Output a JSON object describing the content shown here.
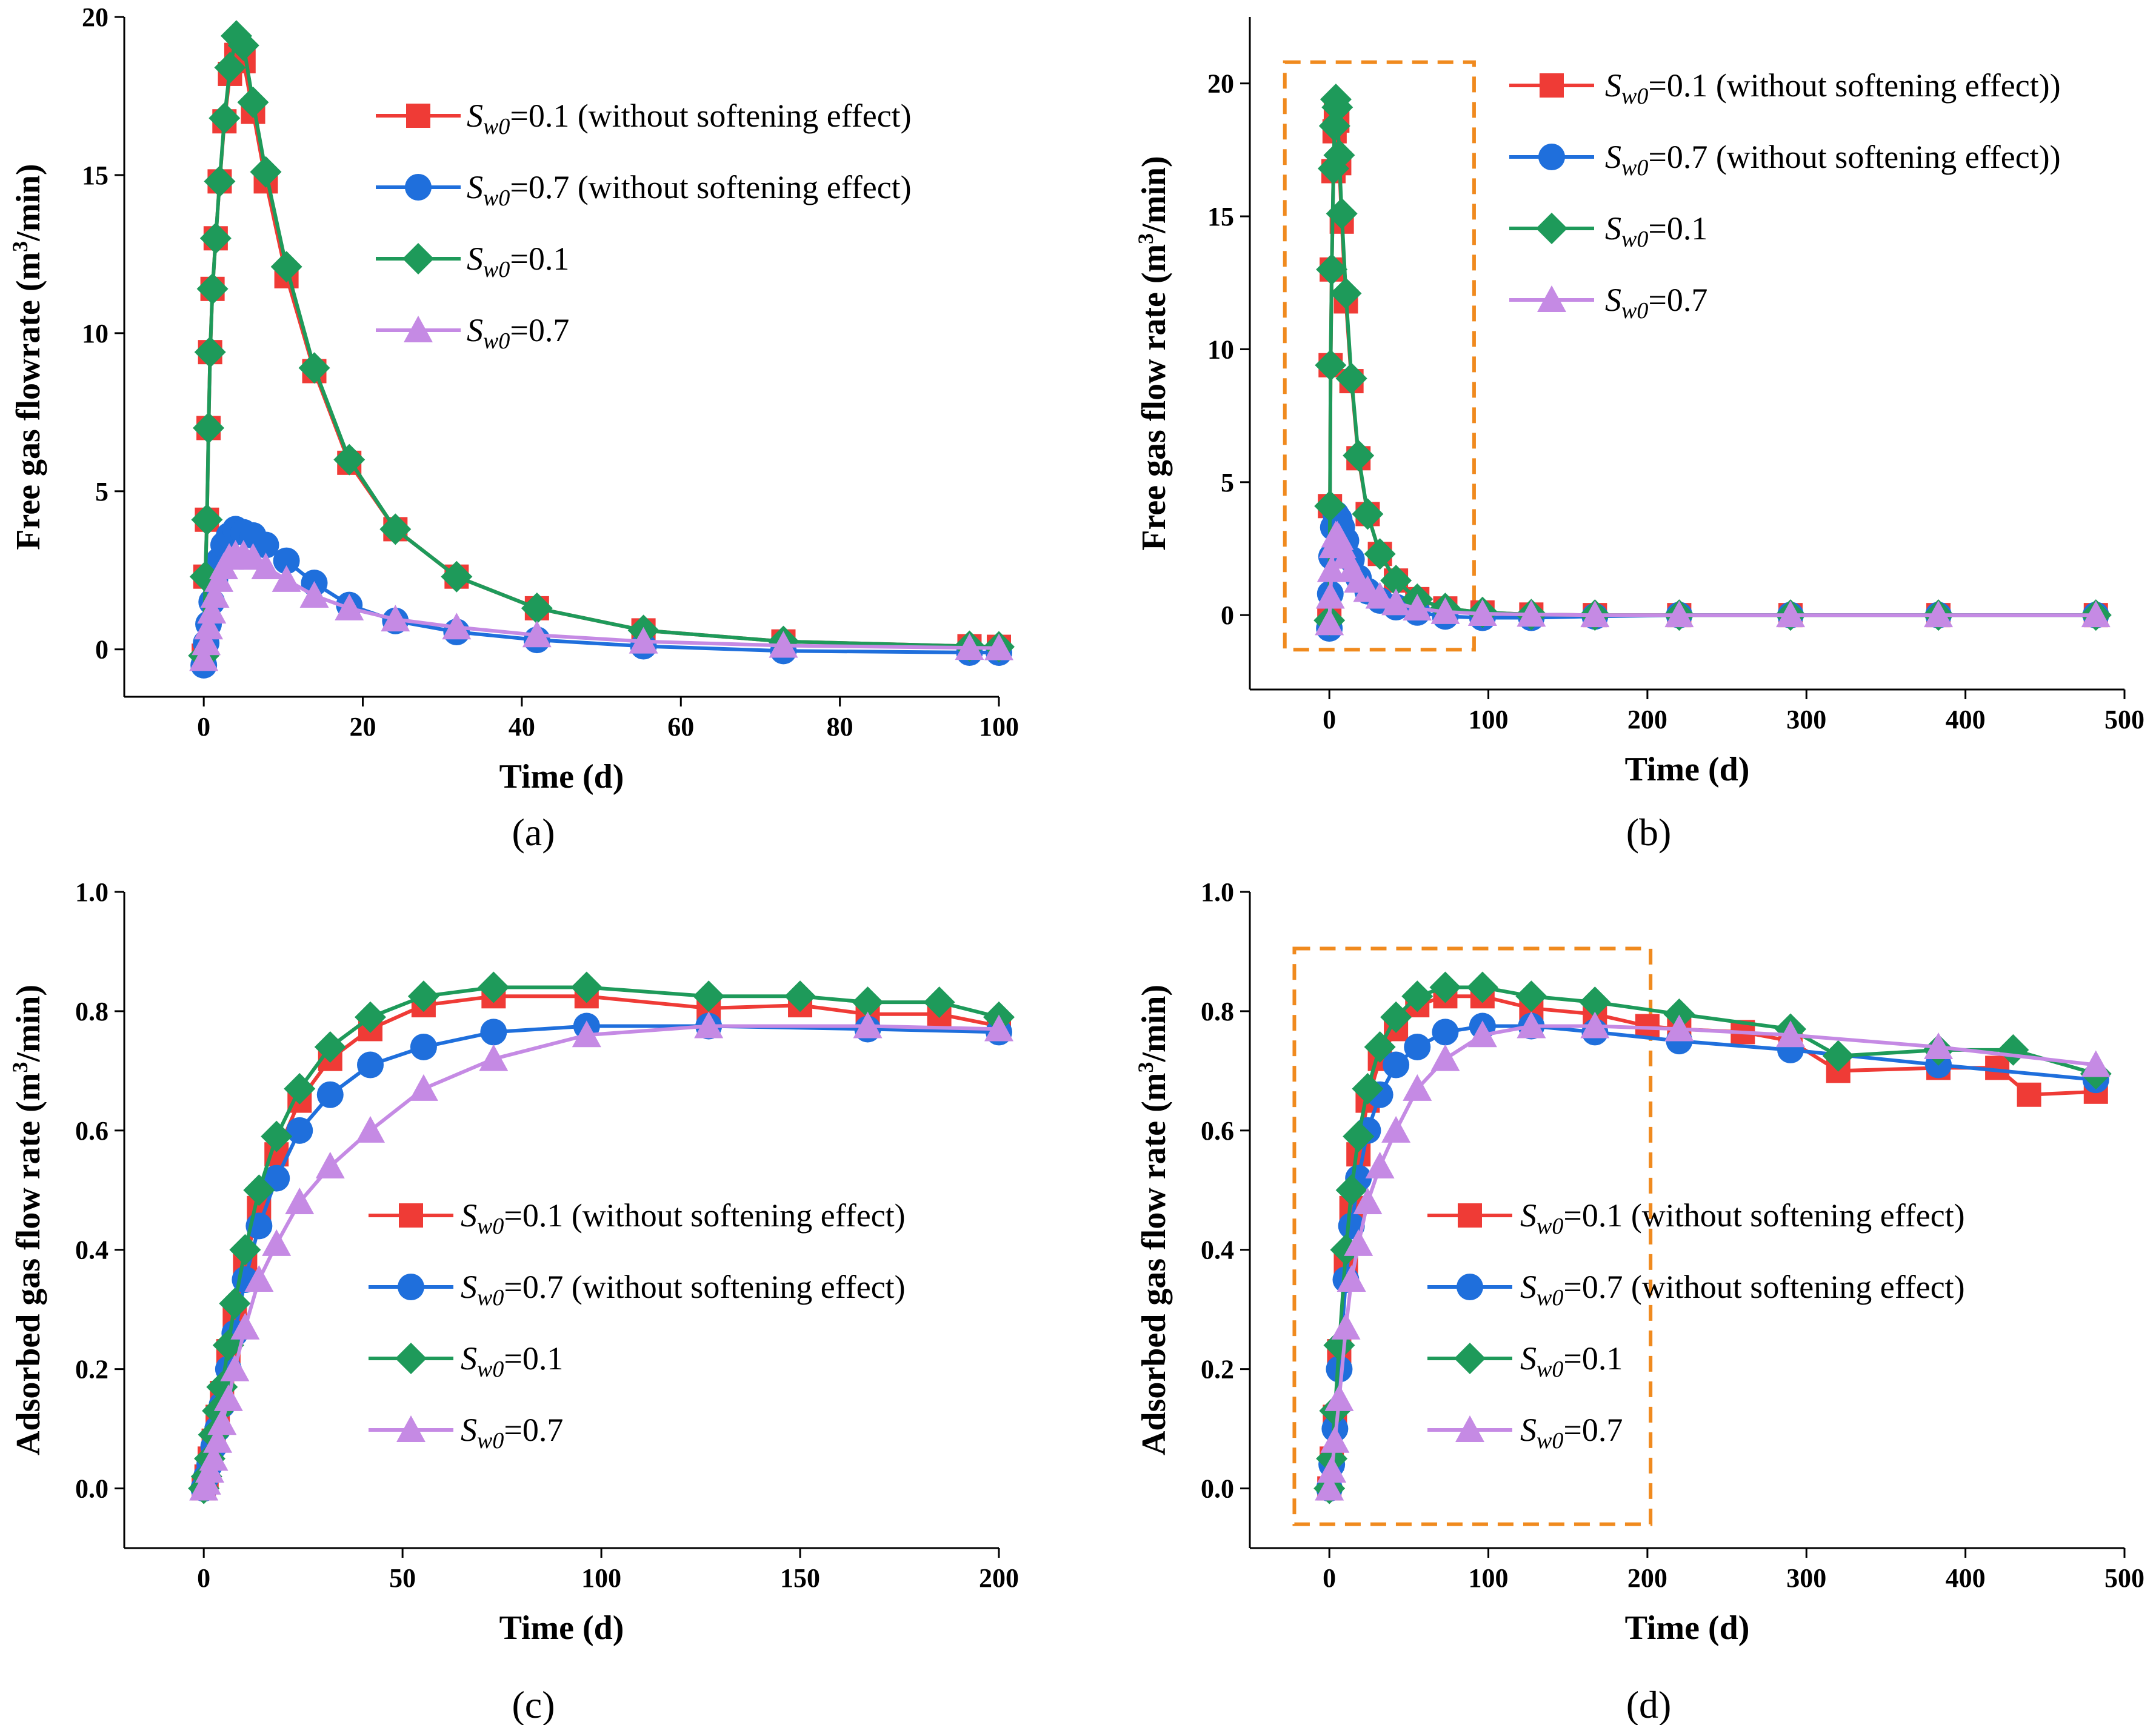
{
  "colors": {
    "red": "#ef3b36",
    "blue": "#1f6fdc",
    "green": "#1e9a5a",
    "violet": "#c58ae4",
    "box": "#f08a1e"
  },
  "chart_data": [
    {
      "id": "a",
      "type": "line",
      "panel_label": "(a)",
      "xlabel": "Time (d)",
      "ylabel": "Free gas flowrate (m3/min)",
      "xlim": [
        -10,
        100
      ],
      "ylim": [
        -1.5,
        20
      ],
      "xticks": [
        0,
        20,
        40,
        60,
        80,
        100
      ],
      "xtick_labels": [
        "0",
        "20",
        "40",
        "60",
        "80",
        "100"
      ],
      "yticks": [
        0,
        5,
        10,
        15,
        20
      ],
      "ytick_labels": [
        "0",
        "5",
        "10",
        "15",
        "20"
      ],
      "legend_position": "top-right",
      "series": [
        {
          "name": "Sw0=0.1 (without softening effect)",
          "color": "red",
          "marker": "square",
          "x": [
            0,
            0.2,
            0.4,
            0.6,
            0.8,
            1.1,
            1.5,
            2,
            2.6,
            3.3,
            4.1,
            5,
            6.2,
            7.8,
            10.4,
            13.9,
            18.3,
            24.1,
            31.8,
            41.9,
            55.3,
            72.9,
            96.3,
            100
          ],
          "y": [
            -0.2,
            2.3,
            4.1,
            7.0,
            9.4,
            11.4,
            13.0,
            14.8,
            16.7,
            18.2,
            18.8,
            18.6,
            17.0,
            14.8,
            11.8,
            8.8,
            5.9,
            3.8,
            2.3,
            1.3,
            0.6,
            0.25,
            0.1,
            0.08
          ]
        },
        {
          "name": "Sw0=0.7 (without softening effect)",
          "color": "blue",
          "marker": "circle",
          "x": [
            0,
            0.3,
            0.6,
            1,
            1.4,
            1.9,
            2.5,
            3.2,
            4,
            5,
            6.2,
            7.8,
            10.4,
            13.9,
            18.3,
            24.1,
            31.8,
            41.9,
            55.3,
            72.9,
            96.3,
            100
          ],
          "y": [
            -0.5,
            0.2,
            0.8,
            1.5,
            2.2,
            2.8,
            3.3,
            3.6,
            3.8,
            3.7,
            3.6,
            3.3,
            2.8,
            2.1,
            1.4,
            0.9,
            0.55,
            0.3,
            0.1,
            -0.05,
            -0.1,
            -0.1
          ]
        },
        {
          "name": "Sw0=0.1",
          "color": "green",
          "marker": "diamond",
          "x": [
            0,
            0.2,
            0.4,
            0.6,
            0.8,
            1.1,
            1.5,
            2,
            2.6,
            3.3,
            4.1,
            5,
            6.2,
            7.8,
            10.4,
            13.9,
            18.3,
            24.1,
            31.8,
            41.9,
            55.3,
            72.9,
            96.3,
            100
          ],
          "y": [
            -0.2,
            2.3,
            4.1,
            7.0,
            9.4,
            11.4,
            13.0,
            14.8,
            16.8,
            18.4,
            19.4,
            19.1,
            17.3,
            15.1,
            12.1,
            8.9,
            6.0,
            3.8,
            2.3,
            1.3,
            0.6,
            0.25,
            0.1,
            0.08
          ]
        },
        {
          "name": "Sw0=0.7",
          "color": "violet",
          "marker": "triangle",
          "x": [
            0,
            0.3,
            0.6,
            1,
            1.4,
            1.9,
            2.5,
            3.2,
            4,
            5,
            6.2,
            7.8,
            10.4,
            13.9,
            18.3,
            24.1,
            31.8,
            41.9,
            55.3,
            72.9,
            96.3,
            100
          ],
          "y": [
            -0.3,
            0.2,
            0.7,
            1.2,
            1.7,
            2.2,
            2.6,
            2.9,
            3.0,
            3.0,
            2.9,
            2.6,
            2.2,
            1.7,
            1.3,
            0.95,
            0.7,
            0.45,
            0.25,
            0.12,
            0.05,
            0.04
          ]
        }
      ]
    },
    {
      "id": "b",
      "type": "line",
      "panel_label": "(b)",
      "xlabel": "Time (d)",
      "ylabel": "Free gas flow rate (m3/min)",
      "xlim": [
        -50,
        500
      ],
      "ylim": [
        -2.8,
        22.5
      ],
      "xticks": [
        0,
        100,
        200,
        300,
        400,
        500
      ],
      "xtick_labels": [
        "0",
        "100",
        "200",
        "300",
        "400",
        "500"
      ],
      "yticks": [
        0,
        5,
        10,
        15,
        20
      ],
      "ytick_labels": [
        "0",
        "5",
        "10",
        "15",
        "20"
      ],
      "legend_position": "top-right",
      "box": {
        "x": [
          -28,
          91
        ],
        "y": [
          -1.3,
          20.8
        ]
      },
      "series": [
        {
          "name": "Sw0=0.1 (without softening effect))",
          "color": "red",
          "marker": "square",
          "x": [
            0,
            0.4,
            0.8,
            1.5,
            2.6,
            3.3,
            4.1,
            5,
            6.2,
            7.8,
            10.4,
            13.9,
            18.3,
            24.1,
            31.8,
            41.9,
            55.3,
            72.9,
            96.3,
            127,
            167,
            220,
            290,
            383,
            482
          ],
          "y": [
            -0.2,
            4.1,
            9.4,
            13.0,
            16.7,
            18.2,
            18.8,
            18.6,
            17.0,
            14.8,
            11.8,
            8.8,
            5.9,
            3.8,
            2.3,
            1.3,
            0.6,
            0.25,
            0.1,
            0.02,
            0,
            0,
            0,
            0,
            0
          ]
        },
        {
          "name": "Sw0=0.7 (without softening effect))",
          "color": "blue",
          "marker": "circle",
          "x": [
            0,
            0.6,
            1.4,
            2.5,
            4,
            5,
            6.2,
            7.8,
            10.4,
            13.9,
            18.3,
            24.1,
            31.8,
            41.9,
            55.3,
            72.9,
            96.3,
            127,
            167,
            220,
            290,
            383,
            482
          ],
          "y": [
            -0.5,
            0.8,
            2.2,
            3.3,
            3.8,
            3.7,
            3.6,
            3.3,
            2.8,
            2.1,
            1.4,
            0.9,
            0.55,
            0.3,
            0.1,
            -0.05,
            -0.1,
            -0.1,
            -0.05,
            0,
            0,
            0,
            0
          ]
        },
        {
          "name": "Sw0=0.1",
          "color": "green",
          "marker": "diamond",
          "x": [
            0,
            0.4,
            0.8,
            1.5,
            2.6,
            3.3,
            4.1,
            5,
            6.2,
            7.8,
            10.4,
            13.9,
            18.3,
            24.1,
            31.8,
            41.9,
            55.3,
            72.9,
            96.3,
            127,
            167,
            220,
            290,
            383,
            482
          ],
          "y": [
            -0.2,
            4.1,
            9.4,
            13.0,
            16.8,
            18.4,
            19.4,
            19.1,
            17.3,
            15.1,
            12.1,
            8.9,
            6.0,
            3.8,
            2.3,
            1.3,
            0.6,
            0.25,
            0.1,
            0.02,
            0,
            0,
            0,
            0,
            0
          ]
        },
        {
          "name": "Sw0=0.7",
          "color": "violet",
          "marker": "triangle",
          "x": [
            0,
            0.6,
            1.4,
            2.5,
            4,
            5,
            6.2,
            7.8,
            10.4,
            13.9,
            18.3,
            24.1,
            31.8,
            41.9,
            55.3,
            72.9,
            96.3,
            127,
            167,
            220,
            290,
            383,
            482
          ],
          "y": [
            -0.3,
            0.7,
            1.7,
            2.6,
            3.0,
            3.0,
            2.9,
            2.6,
            2.2,
            1.7,
            1.3,
            0.95,
            0.7,
            0.45,
            0.25,
            0.12,
            0.05,
            0.02,
            0,
            0,
            0,
            0,
            0
          ]
        }
      ]
    },
    {
      "id": "c",
      "type": "line",
      "panel_label": "(c)",
      "xlabel": "Time (d)",
      "ylabel": "Adsorbed gas flow rate (m3/min)",
      "xlim": [
        -20,
        200
      ],
      "ylim": [
        -0.1,
        1.0
      ],
      "xticks": [
        0,
        50,
        100,
        150,
        200
      ],
      "xtick_labels": [
        "0",
        "50",
        "100",
        "150",
        "200"
      ],
      "yticks": [
        0,
        0.2,
        0.4,
        0.6,
        0.8,
        1.0
      ],
      "ytick_labels": [
        "0.0",
        "0.2",
        "0.4",
        "0.6",
        "0.8",
        "1.0"
      ],
      "legend_position": "center-right",
      "series": [
        {
          "name": "Sw0=0.1 (without softening effect)",
          "color": "red",
          "marker": "square",
          "x": [
            0,
            0.7,
            1.5,
            2.5,
            3.5,
            4.6,
            6.2,
            7.8,
            10.4,
            13.9,
            18.3,
            24.1,
            31.8,
            41.9,
            55.3,
            72.9,
            96.3,
            127,
            150,
            167,
            185,
            200
          ],
          "y": [
            0,
            0.02,
            0.05,
            0.08,
            0.12,
            0.16,
            0.23,
            0.29,
            0.38,
            0.47,
            0.56,
            0.65,
            0.72,
            0.77,
            0.81,
            0.825,
            0.825,
            0.805,
            0.81,
            0.795,
            0.795,
            0.775
          ]
        },
        {
          "name": "Sw0=0.7 (without softening effect)",
          "color": "blue",
          "marker": "circle",
          "x": [
            0,
            0.7,
            1.5,
            2.5,
            3.5,
            4.6,
            6.2,
            7.8,
            10.4,
            13.9,
            18.3,
            24.1,
            31.8,
            41.9,
            55.3,
            72.9,
            96.3,
            127,
            167,
            200
          ],
          "y": [
            0,
            0.02,
            0.04,
            0.07,
            0.1,
            0.14,
            0.2,
            0.26,
            0.35,
            0.44,
            0.52,
            0.6,
            0.66,
            0.71,
            0.74,
            0.765,
            0.775,
            0.775,
            0.77,
            0.765
          ]
        },
        {
          "name": "Sw0=0.1",
          "color": "green",
          "marker": "diamond",
          "x": [
            0,
            0.7,
            1.5,
            2.5,
            3.5,
            4.6,
            6.2,
            7.8,
            10.4,
            13.9,
            18.3,
            24.1,
            31.8,
            41.9,
            55.3,
            72.9,
            96.3,
            127,
            150,
            167,
            185,
            200
          ],
          "y": [
            0,
            0.02,
            0.05,
            0.09,
            0.13,
            0.17,
            0.24,
            0.31,
            0.4,
            0.5,
            0.59,
            0.67,
            0.74,
            0.79,
            0.825,
            0.84,
            0.84,
            0.825,
            0.825,
            0.815,
            0.815,
            0.79
          ]
        },
        {
          "name": "Sw0=0.7",
          "color": "violet",
          "marker": "triangle",
          "x": [
            0,
            0.7,
            1.5,
            2.5,
            3.5,
            4.6,
            6.2,
            7.8,
            10.4,
            13.9,
            18.3,
            24.1,
            31.8,
            41.9,
            55.3,
            72.9,
            96.3,
            127,
            167,
            200
          ],
          "y": [
            0,
            0.01,
            0.03,
            0.05,
            0.08,
            0.11,
            0.15,
            0.2,
            0.27,
            0.35,
            0.41,
            0.48,
            0.54,
            0.6,
            0.67,
            0.72,
            0.76,
            0.775,
            0.775,
            0.77
          ]
        }
      ]
    },
    {
      "id": "d",
      "type": "line",
      "panel_label": "(d)",
      "xlabel": "Time (d)",
      "ylabel": "Adsorbed gas flow rate (m3/min)",
      "xlim": [
        -50,
        500
      ],
      "ylim": [
        -0.1,
        1.0
      ],
      "xticks": [
        0,
        100,
        200,
        300,
        400,
        500
      ],
      "xtick_labels": [
        "0",
        "100",
        "200",
        "300",
        "400",
        "500"
      ],
      "yticks": [
        0,
        0.2,
        0.4,
        0.6,
        0.8,
        1.0
      ],
      "ytick_labels": [
        "0.0",
        "0.2",
        "0.4",
        "0.6",
        "0.8",
        "1.0"
      ],
      "legend_position": "center-right",
      "box": {
        "x": [
          -22,
          202
        ],
        "y": [
          -0.06,
          0.905
        ]
      },
      "series": [
        {
          "name": "Sw0=0.1 (without softening effect)",
          "color": "red",
          "marker": "square",
          "x": [
            0,
            1.5,
            3.5,
            6.2,
            10.4,
            13.9,
            18.3,
            24.1,
            31.8,
            41.9,
            55.3,
            72.9,
            96.3,
            127,
            167,
            200,
            220,
            260,
            290,
            320,
            383,
            420,
            440,
            482
          ],
          "y": [
            0,
            0.05,
            0.12,
            0.23,
            0.38,
            0.47,
            0.56,
            0.65,
            0.72,
            0.77,
            0.81,
            0.825,
            0.825,
            0.805,
            0.795,
            0.775,
            0.77,
            0.765,
            0.75,
            0.7,
            0.705,
            0.705,
            0.66,
            0.665
          ]
        },
        {
          "name": "Sw0=0.7 (without softening effect)",
          "color": "blue",
          "marker": "circle",
          "x": [
            0,
            1.5,
            3.5,
            6.2,
            10.4,
            13.9,
            18.3,
            24.1,
            31.8,
            41.9,
            55.3,
            72.9,
            96.3,
            127,
            167,
            220,
            290,
            383,
            482
          ],
          "y": [
            0,
            0.04,
            0.1,
            0.2,
            0.35,
            0.44,
            0.52,
            0.6,
            0.66,
            0.71,
            0.74,
            0.765,
            0.775,
            0.775,
            0.765,
            0.75,
            0.735,
            0.71,
            0.685
          ]
        },
        {
          "name": "Sw0=0.1",
          "color": "green",
          "marker": "diamond",
          "x": [
            0,
            1.5,
            3.5,
            6.2,
            10.4,
            13.9,
            18.3,
            24.1,
            31.8,
            41.9,
            55.3,
            72.9,
            96.3,
            127,
            167,
            220,
            290,
            320,
            383,
            430,
            482
          ],
          "y": [
            0,
            0.05,
            0.13,
            0.24,
            0.4,
            0.5,
            0.59,
            0.67,
            0.74,
            0.79,
            0.825,
            0.84,
            0.84,
            0.825,
            0.815,
            0.795,
            0.77,
            0.725,
            0.735,
            0.735,
            0.695
          ]
        },
        {
          "name": "Sw0=0.7",
          "color": "violet",
          "marker": "triangle",
          "x": [
            0,
            1.5,
            3.5,
            6.2,
            10.4,
            13.9,
            18.3,
            24.1,
            31.8,
            41.9,
            55.3,
            72.9,
            96.3,
            127,
            167,
            220,
            290,
            383,
            482
          ],
          "y": [
            0,
            0.03,
            0.08,
            0.15,
            0.27,
            0.35,
            0.41,
            0.48,
            0.54,
            0.6,
            0.67,
            0.72,
            0.76,
            0.775,
            0.775,
            0.77,
            0.76,
            0.74,
            0.71
          ]
        }
      ]
    }
  ]
}
